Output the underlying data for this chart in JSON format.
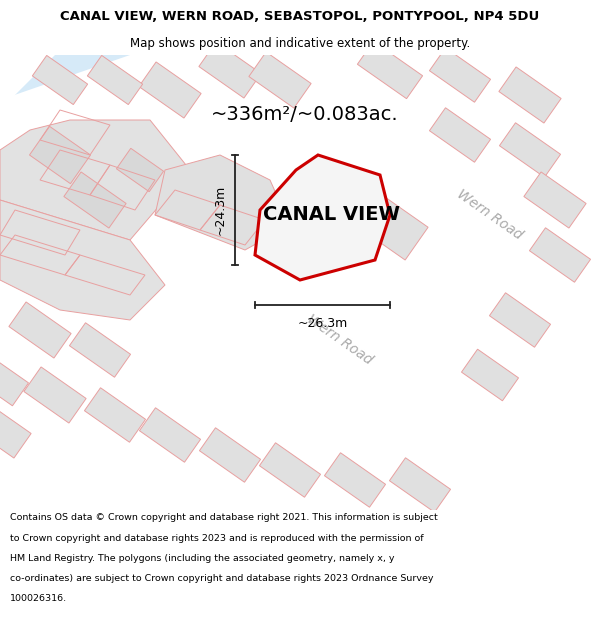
{
  "title": "CANAL VIEW, WERN ROAD, SEBASTOPOL, PONTYPOOL, NP4 5DU",
  "subtitle": "Map shows position and indicative extent of the property.",
  "area_text": "~336m²/~0.083ac.",
  "property_label": "CANAL VIEW",
  "dim_width": "~26.3m",
  "dim_height": "~24.3m",
  "road_label": "Wern Road",
  "footer_lines": [
    "Contains OS data © Crown copyright and database right 2021. This information is subject",
    "to Crown copyright and database rights 2023 and is reproduced with the permission of",
    "HM Land Registry. The polygons (including the associated geometry, namely x, y",
    "co-ordinates) are subject to Crown copyright and database rights 2023 Ordnance Survey",
    "100026316."
  ],
  "map_bg": "#ebebeb",
  "road_color": "#ffffff",
  "water_color": "#d6eaf8",
  "building_fill": "#e0e0e0",
  "building_edge": "#e8a0a0",
  "plot_edge_color": "#cc0000",
  "plot_fill": "#f5f5f5",
  "dim_line_color": "#222222",
  "road_label_color": "#aaaaaa",
  "title_fontsize": 9.5,
  "subtitle_fontsize": 8.5,
  "area_fontsize": 14,
  "label_fontsize": 14,
  "dim_fontsize": 9,
  "road_label_fontsize": 10,
  "footer_fontsize": 6.8
}
